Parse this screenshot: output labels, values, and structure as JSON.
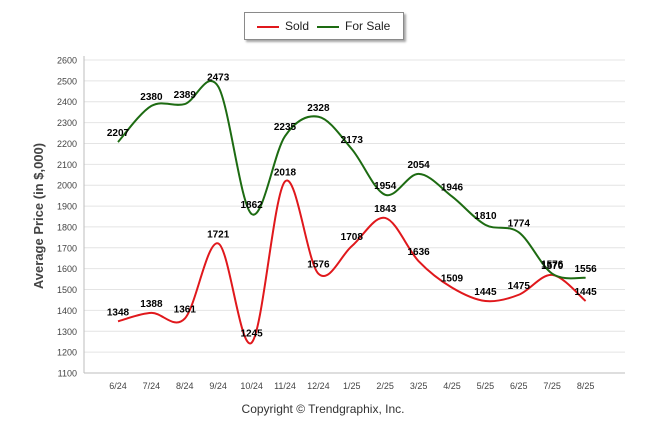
{
  "chart_data": {
    "type": "line",
    "title": "",
    "xlabel": "",
    "ylabel": "Average Price (in $,000)",
    "ylim": [
      1100,
      2600
    ],
    "yticks": [
      1100,
      1200,
      1300,
      1400,
      1500,
      1600,
      1700,
      1800,
      1900,
      2000,
      2100,
      2200,
      2300,
      2400,
      2500,
      2600
    ],
    "grid": true,
    "legend_position": "top-center",
    "categories": [
      "6/24",
      "7/24",
      "8/24",
      "9/24",
      "10/24",
      "11/24",
      "12/24",
      "1/25",
      "2/25",
      "3/25",
      "4/25",
      "5/25",
      "6/25",
      "7/25",
      "8/25"
    ],
    "series": [
      {
        "name": "Sold",
        "color": "#e0181c",
        "values": [
          1348,
          1388,
          1361,
          1721,
          1245,
          2018,
          1576,
          1708,
          1843,
          1636,
          1509,
          1445,
          1475,
          1570,
          1445
        ]
      },
      {
        "name": "For Sale",
        "color": "#1d6b12",
        "values": [
          2207,
          2380,
          2389,
          2473,
          1862,
          2235,
          2328,
          2173,
          1954,
          2054,
          1946,
          1810,
          1774,
          1576,
          1556
        ]
      }
    ]
  },
  "footer": {
    "copyright": "Copyright © Trendgraphix, Inc."
  }
}
